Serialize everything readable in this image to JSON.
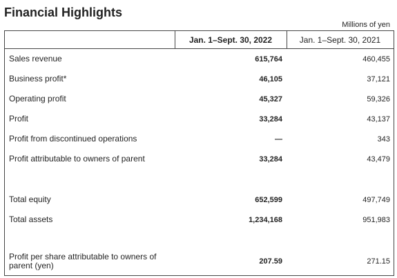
{
  "header": {
    "title": "Financial Highlights",
    "unit": "Millions of yen"
  },
  "table": {
    "columns": [
      "Jan. 1–Sept. 30, 2022",
      "Jan. 1–Sept. 30, 2021"
    ],
    "groups": [
      [
        [
          "Sales revenue",
          "615,764",
          "460,455"
        ],
        [
          "Business profit*",
          "46,105",
          "37,121"
        ],
        [
          "Operating profit",
          "45,327",
          "59,326"
        ],
        [
          "Profit",
          "33,284",
          "43,137"
        ],
        [
          "Profit from discontinued operations",
          "—",
          "343"
        ],
        [
          "Profit attributable to owners of parent",
          "33,284",
          "43,479"
        ]
      ],
      [
        [
          "Total equity",
          "652,599",
          "497,749"
        ],
        [
          "Total assets",
          "1,234,168",
          "951,983"
        ]
      ],
      [
        [
          "Profit per share attributable to owners of parent (yen)",
          "207.59",
          "271.15"
        ]
      ]
    ]
  }
}
